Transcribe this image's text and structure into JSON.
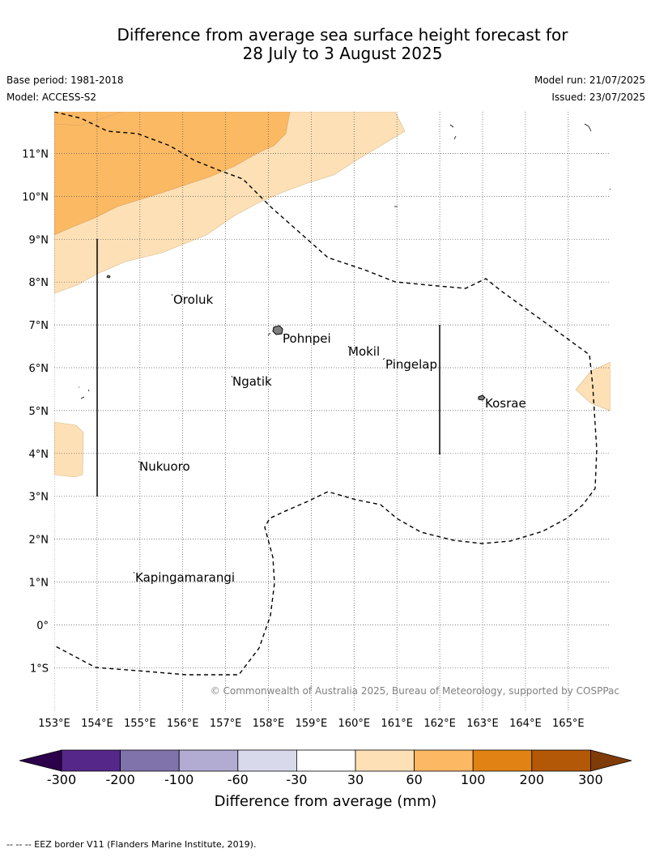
{
  "header": {
    "title_line1": "Difference from average sea surface height forecast for",
    "title_line2": "28 July to 3 August 2025",
    "base_period": "Base period: 1981-2018",
    "model": "Model: ACCESS-S2",
    "model_run": "Model run: 21/07/2025",
    "issued": "Issued: 23/07/2025"
  },
  "map": {
    "lat_labels": [
      "11°N",
      "10°N",
      "9°N",
      "8°N",
      "7°N",
      "6°N",
      "5°N",
      "4°N",
      "3°N",
      "2°N",
      "1°N",
      "0°",
      "1°S"
    ],
    "lon_labels": [
      "153°E",
      "154°E",
      "155°E",
      "156°E",
      "157°E",
      "158°E",
      "159°E",
      "160°E",
      "161°E",
      "162°E",
      "163°E",
      "164°E",
      "165°E"
    ],
    "places": [
      "Oroluk",
      "Pohnpei",
      "Mokil",
      "Pingelap",
      "Ngatik",
      "Kosrae",
      "Nukuoro",
      "Kapingamarangi"
    ],
    "copyright": "© Commonwealth of Australia 2025, Bureau of Meteorology, supported by COSPPac",
    "fill_colors": {
      "30_60": "#fde0b6",
      "60_100": "#fbb963",
      "100_200": "#e08214"
    },
    "gridlines": true
  },
  "colorbar": {
    "ticks": [
      "-300",
      "-200",
      "-100",
      "-60",
      "-30",
      "30",
      "60",
      "100",
      "200",
      "300"
    ],
    "title": "Difference from average (mm)",
    "colors": [
      "#2d004b",
      "#542788",
      "#8073ac",
      "#b2abd2",
      "#d8daeb",
      "#ffffff",
      "#fee0b6",
      "#fdb863",
      "#e08214",
      "#b35806",
      "#7f3b08"
    ]
  },
  "footer": {
    "text": "--  --  -- EEZ border V11 (Flanders Marine Institute, 2019)."
  }
}
